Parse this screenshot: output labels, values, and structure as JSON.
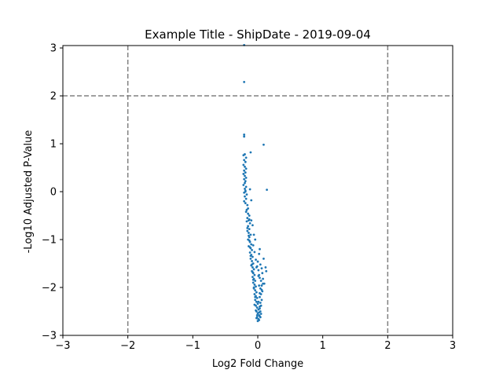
{
  "chart_data": {
    "type": "scatter",
    "title": "Example Title - ShipDate - 2019-09-04",
    "xlabel": "Log2 Fold Change",
    "ylabel": "-Log10 Adjusted P-Value",
    "xlim": [
      -3,
      3
    ],
    "ylim": [
      -3,
      3.05
    ],
    "xticks": [
      -3,
      -2,
      -1,
      0,
      1,
      2,
      3
    ],
    "yticks": [
      -3,
      -2,
      -1,
      0,
      1,
      2,
      3
    ],
    "grid": false,
    "marker_color": "#1f77b4",
    "threshold_color": "#808080",
    "thresholds": {
      "vertical": [
        -2,
        2
      ],
      "horizontal": [
        2
      ]
    },
    "series": [
      {
        "points": [
          [
            -0.21,
            3.06
          ],
          [
            -0.21,
            2.29
          ],
          [
            -0.21,
            1.19
          ],
          [
            -0.21,
            1.15
          ],
          [
            0.09,
            0.98
          ],
          [
            0.14,
            0.04
          ],
          [
            -0.11,
            0.82
          ],
          [
            -0.2,
            0.78
          ],
          [
            -0.22,
            0.76
          ],
          [
            -0.18,
            0.71
          ],
          [
            -0.21,
            0.66
          ],
          [
            -0.19,
            0.62
          ],
          [
            -0.22,
            0.56
          ],
          [
            -0.2,
            0.52
          ],
          [
            -0.18,
            0.48
          ],
          [
            -0.21,
            0.44
          ],
          [
            -0.19,
            0.4
          ],
          [
            -0.22,
            0.37
          ],
          [
            -0.2,
            0.33
          ],
          [
            -0.18,
            0.29
          ],
          [
            -0.21,
            0.26
          ],
          [
            -0.19,
            0.22
          ],
          [
            -0.2,
            0.18
          ],
          [
            -0.22,
            0.14
          ],
          [
            -0.18,
            0.1
          ],
          [
            -0.2,
            0.06
          ],
          [
            -0.19,
            0.02
          ],
          [
            -0.21,
            -0.02
          ],
          [
            -0.17,
            -0.06
          ],
          [
            -0.2,
            -0.1
          ],
          [
            -0.18,
            -0.15
          ],
          [
            -0.21,
            -0.2
          ],
          [
            -0.19,
            -0.24
          ],
          [
            -0.16,
            -0.28
          ],
          [
            -0.1,
            -0.18
          ],
          [
            -0.12,
            0.05
          ],
          [
            -0.18,
            -0.42
          ],
          [
            -0.15,
            -0.46
          ],
          [
            -0.13,
            -0.5
          ],
          [
            -0.16,
            -0.55
          ],
          [
            -0.14,
            -0.6
          ],
          [
            -0.12,
            -0.66
          ],
          [
            -0.15,
            -0.72
          ],
          [
            -0.13,
            -0.78
          ],
          [
            -0.16,
            -0.82
          ],
          [
            -0.14,
            -0.86
          ],
          [
            -0.11,
            -0.9
          ],
          [
            -0.13,
            -0.95
          ],
          [
            -0.15,
            -1.0
          ],
          [
            -0.12,
            -1.05
          ],
          [
            -0.1,
            -1.1
          ],
          [
            -0.14,
            -1.14
          ],
          [
            -0.11,
            -1.18
          ],
          [
            -0.09,
            -1.22
          ],
          [
            -0.12,
            -1.27
          ],
          [
            -0.1,
            -1.32
          ],
          [
            -0.08,
            -1.36
          ],
          [
            -0.11,
            -1.4
          ],
          [
            -0.09,
            -1.45
          ],
          [
            -0.07,
            -1.5
          ],
          [
            -0.1,
            -1.54
          ],
          [
            -0.08,
            -1.58
          ],
          [
            -0.06,
            -1.62
          ],
          [
            -0.09,
            -1.66
          ],
          [
            -0.07,
            -1.7
          ],
          [
            -0.05,
            -1.74
          ],
          [
            -0.08,
            -1.78
          ],
          [
            -0.06,
            -1.82
          ],
          [
            -0.04,
            -1.86
          ],
          [
            -0.07,
            -1.9
          ],
          [
            -0.05,
            -1.94
          ],
          [
            -0.03,
            -1.98
          ],
          [
            -0.06,
            -2.02
          ],
          [
            -0.04,
            -2.06
          ],
          [
            -0.02,
            -2.1
          ],
          [
            -0.05,
            -2.14
          ],
          [
            -0.03,
            -2.18
          ],
          [
            -0.01,
            -2.22
          ],
          [
            -0.04,
            -2.26
          ],
          [
            -0.02,
            -2.3
          ],
          [
            0.0,
            -2.34
          ],
          [
            -0.03,
            -2.38
          ],
          [
            -0.01,
            -2.42
          ],
          [
            0.01,
            -2.46
          ],
          [
            -0.02,
            -2.5
          ],
          [
            0.0,
            -2.54
          ],
          [
            0.02,
            -2.58
          ],
          [
            -0.01,
            -2.62
          ],
          [
            0.01,
            -2.66
          ],
          [
            0.0,
            -2.7
          ],
          [
            0.02,
            -2.68
          ],
          [
            -0.02,
            -2.64
          ],
          [
            0.03,
            -2.6
          ],
          [
            0.05,
            -2.55
          ],
          [
            0.04,
            -2.5
          ],
          [
            0.03,
            -2.44
          ],
          [
            0.05,
            -2.38
          ],
          [
            0.04,
            -2.32
          ],
          [
            0.06,
            -2.26
          ],
          [
            0.03,
            -2.2
          ],
          [
            0.05,
            -2.14
          ],
          [
            0.07,
            -2.08
          ],
          [
            0.04,
            -2.02
          ],
          [
            0.06,
            -1.96
          ],
          [
            0.08,
            -1.92
          ],
          [
            0.05,
            -1.86
          ],
          [
            0.03,
            -1.8
          ],
          [
            0.02,
            -1.74
          ],
          [
            0.07,
            -1.7
          ],
          [
            0.01,
            -1.64
          ],
          [
            -0.02,
            -1.58
          ],
          [
            0.04,
            -1.52
          ],
          [
            0.0,
            -1.46
          ],
          [
            0.09,
            -1.4
          ],
          [
            0.12,
            -1.58
          ],
          [
            0.13,
            -1.66
          ],
          [
            0.06,
            -1.6
          ],
          [
            0.08,
            -1.82
          ],
          [
            0.1,
            -1.92
          ],
          [
            0.06,
            -2.05
          ],
          [
            0.02,
            -1.3
          ],
          [
            0.03,
            -1.2
          ],
          [
            -0.04,
            -1.0
          ],
          [
            -0.06,
            -0.9
          ],
          [
            -0.08,
            -0.7
          ],
          [
            -0.1,
            -0.6
          ],
          [
            -0.15,
            -0.35
          ],
          [
            -0.17,
            -0.38
          ],
          [
            -0.13,
            -0.58
          ],
          [
            -0.07,
            -1.12
          ],
          [
            -0.05,
            -1.26
          ],
          [
            -0.03,
            -1.42
          ],
          [
            -0.01,
            -1.56
          ],
          [
            0.01,
            -1.76
          ],
          [
            0.02,
            -1.96
          ],
          [
            0.03,
            -2.12
          ],
          [
            0.01,
            -2.3
          ],
          [
            0.03,
            -2.4
          ],
          [
            0.02,
            -2.52
          ],
          [
            0.04,
            -2.62
          ],
          [
            -0.01,
            -2.58
          ],
          [
            -0.03,
            -2.48
          ],
          [
            -0.05,
            -2.36
          ],
          [
            -0.04,
            -2.2
          ],
          [
            -0.06,
            -2.0
          ],
          [
            -0.07,
            -1.84
          ],
          [
            -0.08,
            -1.68
          ],
          [
            -0.09,
            -1.52
          ],
          [
            -0.11,
            -1.34
          ],
          [
            -0.12,
            -1.16
          ],
          [
            -0.13,
            -1.02
          ],
          [
            -0.14,
            -0.92
          ],
          [
            -0.16,
            -0.76
          ],
          [
            -0.17,
            -0.62
          ],
          [
            -0.19,
            0.0
          ]
        ]
      }
    ]
  }
}
